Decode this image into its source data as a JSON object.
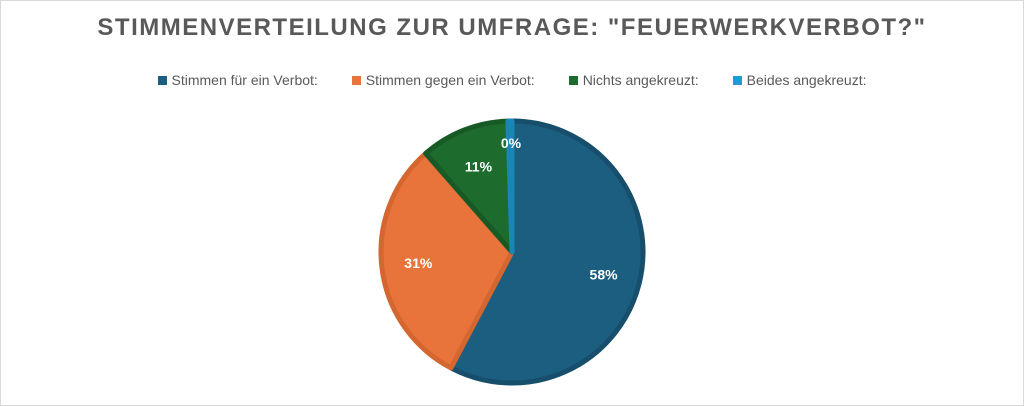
{
  "chart_data": {
    "type": "pie",
    "title": "STIMMENVERTEILUNG ZUR UMFRAGE: \"FEUERWERKVERBOT?\"",
    "legend_position": "top",
    "categories": [
      "Stimmen für ein Verbot:",
      "Stimmen gegen ein Verbot:",
      "Nichts angekreuzt:",
      "Beides angekreuzt:"
    ],
    "values": [
      58,
      31,
      11,
      0.5
    ],
    "labels": [
      "58%",
      "31%",
      "11%",
      "0%"
    ],
    "colors": [
      "#1b5e80",
      "#e8743b",
      "#1e6b2e",
      "#1f9bd1"
    ]
  }
}
